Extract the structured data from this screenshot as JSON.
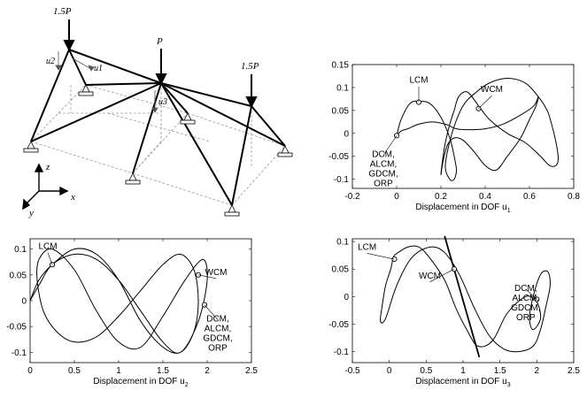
{
  "structure": {
    "loads": [
      {
        "label": "1.5P"
      },
      {
        "label": "P"
      },
      {
        "label": "1.5P"
      }
    ],
    "dof_labels": [
      "u2",
      "u1",
      "u3"
    ],
    "axes": {
      "z": "z",
      "x": "x",
      "y": "y"
    }
  },
  "chart_data": [
    {
      "type": "line",
      "id": "u1",
      "xlabel": "Displacement in DOF u",
      "xlabel_sub": "1",
      "xlim": [
        -0.2,
        0.8
      ],
      "ylim": [
        -0.12,
        0.15
      ],
      "xticks": [
        "-0.2",
        "0",
        "0.2",
        "0.4",
        "0.6",
        "0.8"
      ],
      "xtick_values": [
        -0.2,
        0,
        0.2,
        0.4,
        0.6,
        0.8
      ],
      "yticks": [
        "0.15",
        "0.1",
        "0.05",
        "0",
        "-0.05",
        "-0.1"
      ],
      "ytick_values": [
        0.15,
        0.1,
        0.05,
        0,
        -0.05,
        -0.1
      ],
      "series": [
        {
          "x": [
            0,
            0.02,
            0.06,
            0.1,
            0.15,
            0.2,
            0.24,
            0.26,
            0.27,
            0.26,
            0.24,
            0.22,
            0.25,
            0.3,
            0.36,
            0.42,
            0.5,
            0.58,
            0.64,
            0.68,
            0.7,
            0.72,
            0.73,
            0.72,
            0.69,
            0.65,
            0.58,
            0.5,
            0.42,
            0.37,
            0.32,
            0.28,
            0.26,
            0.24,
            0.22,
            0.21,
            0.2,
            0.21,
            0.23,
            0.26,
            0.3,
            0.35,
            0.4,
            0.45,
            0.5,
            0.56,
            0.6,
            0.63,
            0.64,
            0.62,
            0.56,
            0.48,
            0.4,
            0.33,
            0.27,
            0.22,
            0.16,
            0.1,
            0.05,
            0.02,
            0
          ],
          "y": [
            -0.005,
            0.03,
            0.065,
            0.07,
            0.065,
            0.035,
            -0.01,
            -0.05,
            -0.08,
            -0.1,
            -0.1,
            -0.07,
            0,
            0.06,
            0.09,
            0.11,
            0.12,
            0.11,
            0.08,
            0.05,
            0.02,
            -0.02,
            -0.055,
            -0.07,
            -0.07,
            -0.05,
            -0.02,
            0,
            0.03,
            0.06,
            0.09,
            0.08,
            0.05,
            0.02,
            -0.02,
            -0.05,
            -0.09,
            -0.06,
            -0.025,
            -0.01,
            -0.015,
            -0.04,
            -0.07,
            -0.08,
            -0.05,
            -0.01,
            0.03,
            0.06,
            0.08,
            0.06,
            0.04,
            0.02,
            0.01,
            0.008,
            0.01,
            0.02,
            0.025,
            0.02,
            0.01,
            0.005,
            -0.005
          ]
        }
      ],
      "markers": [
        {
          "name": "LCM",
          "x": 0.1,
          "y": 0.068
        },
        {
          "name": "WCM",
          "x": 0.37,
          "y": 0.054
        },
        {
          "name": "DCM, ALCM, GDCM, ORP",
          "x": 0.0,
          "y": -0.005
        }
      ],
      "annotations": [
        {
          "text": "LCM",
          "lx": 0.1,
          "ly": 0.11
        },
        {
          "text": "WCM",
          "lx": 0.43,
          "ly": 0.09
        },
        {
          "lines": [
            "DCM,",
            "ALCM,",
            "GDCM,",
            "ORP"
          ],
          "lx": -0.06,
          "ly": -0.04
        }
      ]
    },
    {
      "type": "line",
      "id": "u2",
      "xlabel": "Displacement in DOF u",
      "xlabel_sub": "2",
      "xlim": [
        0,
        2.5
      ],
      "ylim": [
        -0.12,
        0.12
      ],
      "xticks": [
        "0",
        "0.5",
        "1",
        "1.5",
        "2",
        "2.5"
      ],
      "xtick_values": [
        0,
        0.5,
        1,
        1.5,
        2,
        2.5
      ],
      "yticks": [
        "0.1",
        "0.05",
        "0",
        "-0.05",
        "-0.1"
      ],
      "ytick_values": [
        0.1,
        0.05,
        0,
        -0.05,
        -0.1
      ],
      "series": [
        {
          "x": [
            0,
            0.1,
            0.25,
            0.5,
            0.75,
            1,
            1.25,
            1.5,
            1.7,
            1.85,
            1.9,
            1.85,
            1.7,
            1.5,
            1.25,
            1,
            0.75,
            0.5,
            0.3,
            0.15,
            0.08,
            0.1,
            0.25,
            0.5,
            0.75,
            1,
            1.25,
            1.5,
            1.75,
            1.95,
            2.0,
            1.9,
            1.7,
            1.5,
            1.25,
            1.0,
            0.75,
            0.5,
            0.25,
            0.1,
            0
          ],
          "y": [
            0,
            0.04,
            0.07,
            0.1,
            0.09,
            0.04,
            -0.04,
            -0.09,
            -0.1,
            -0.06,
            0,
            0.06,
            0.09,
            0.07,
            0.02,
            -0.03,
            -0.07,
            -0.08,
            -0.06,
            -0.02,
            0.04,
            0.08,
            0.1,
            0.06,
            -0.02,
            -0.08,
            -0.09,
            -0.03,
            0.04,
            0.08,
            0.04,
            -0.04,
            -0.1,
            -0.08,
            -0.02,
            0.04,
            0.08,
            0.09,
            0.07,
            0.03,
            0
          ]
        }
      ],
      "markers": [
        {
          "name": "LCM",
          "x": 0.25,
          "y": 0.07
        },
        {
          "name": "WCM",
          "x": 1.9,
          "y": 0.05
        },
        {
          "name": "DCM, ALCM, GDCM, ORP",
          "x": 1.97,
          "y": -0.008
        }
      ],
      "annotations": [
        {
          "text": "LCM",
          "lx": 0.2,
          "ly": 0.1
        },
        {
          "text": "WCM",
          "lx": 2.1,
          "ly": 0.05
        },
        {
          "lines": [
            "DCM,",
            "ALCM,",
            "GDCM,",
            "ORP"
          ],
          "lx": 2.12,
          "ly": -0.03
        }
      ]
    },
    {
      "type": "line",
      "id": "u3",
      "xlabel": "Displacement in DOF u",
      "xlabel_sub": "3",
      "xlim": [
        -0.5,
        2.5
      ],
      "ylim": [
        -0.12,
        0.105
      ],
      "xticks": [
        "-0.5",
        "0",
        "0.5",
        "1",
        "1.5",
        "2",
        "2.5"
      ],
      "xtick_values": [
        -0.5,
        0,
        0.5,
        1,
        1.5,
        2,
        2.5
      ],
      "yticks": [
        "0.1",
        "0.05",
        "0",
        "-0.05",
        "-0.1"
      ],
      "ytick_values": [
        0.1,
        0.05,
        0,
        -0.05,
        -0.1
      ],
      "series": [
        {
          "x": [
            0.05,
            0.02,
            -0.05,
            -0.1,
            -0.12,
            -0.05,
            0.1,
            0.3,
            0.55,
            0.75,
            0.95,
            1.15,
            1.35,
            1.55,
            1.75,
            1.95,
            2.05,
            2.12,
            2.18,
            2.15,
            2.05,
            1.95,
            1.9,
            1.95,
            2.05,
            2.0,
            1.85,
            1.6,
            1.4,
            1.2,
            1.05,
            0.9,
            0.75,
            0.55,
            0.4,
            0.25,
            0.12,
            0.07,
            0.05
          ],
          "y": [
            0.07,
            0.05,
            0.02,
            -0.02,
            -0.045,
            -0.04,
            0.02,
            0.07,
            0.09,
            0.08,
            0.04,
            -0.02,
            -0.07,
            -0.095,
            -0.1,
            -0.09,
            -0.06,
            -0.02,
            0.02,
            0.045,
            0.04,
            0.0,
            -0.04,
            -0.06,
            -0.04,
            -0.01,
            0.0,
            -0.03,
            -0.08,
            -0.09,
            -0.06,
            -0.02,
            0.03,
            0.07,
            0.09,
            0.09,
            0.08,
            0.075,
            0.07
          ]
        },
        {
          "x": [
            0.75,
            1.22
          ],
          "y": [
            0.11,
            -0.11
          ]
        }
      ],
      "markers": [
        {
          "name": "LCM",
          "x": 0.07,
          "y": 0.068
        },
        {
          "name": "WCM",
          "x": 0.88,
          "y": 0.05
        },
        {
          "name": "DCM, ALCM, GDCM, ORP",
          "x": 2.0,
          "y": -0.005
        }
      ],
      "annotations": [
        {
          "text": "LCM",
          "lx": -0.3,
          "ly": 0.085
        },
        {
          "text": "WCM",
          "lx": 0.55,
          "ly": 0.033
        },
        {
          "lines": [
            "DCM,",
            "ALCM,",
            "GDCM,",
            "ORP"
          ],
          "lx": 1.85,
          "ly": 0.02
        }
      ]
    }
  ]
}
